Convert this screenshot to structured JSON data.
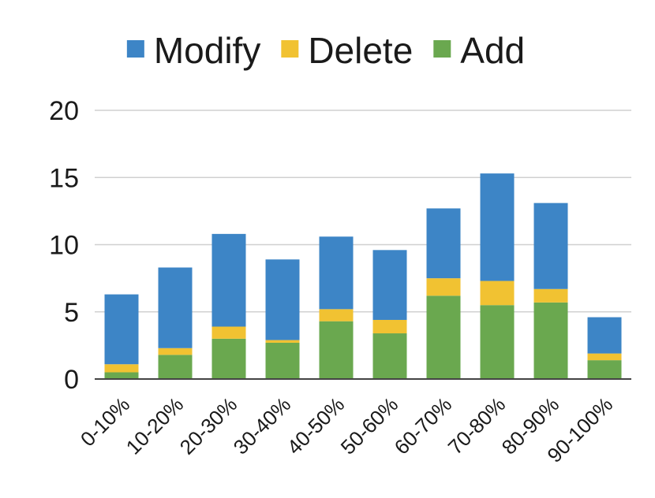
{
  "chart_data": {
    "type": "bar",
    "stacked": true,
    "categories": [
      "0-10%",
      "10-20%",
      "20-30%",
      "30-40%",
      "40-50%",
      "50-60%",
      "60-70%",
      "70-80%",
      "80-90%",
      "90-100%"
    ],
    "series": [
      {
        "name": "Add",
        "color": "#6aa84f",
        "values": [
          0.5,
          1.8,
          3.0,
          2.7,
          4.3,
          3.4,
          6.2,
          5.5,
          5.7,
          1.4
        ]
      },
      {
        "name": "Delete",
        "color": "#f1c232",
        "values": [
          0.6,
          0.5,
          0.9,
          0.2,
          0.9,
          1.0,
          1.3,
          1.8,
          1.0,
          0.5
        ]
      },
      {
        "name": "Modify",
        "color": "#3d85c6",
        "values": [
          5.2,
          6.0,
          6.9,
          6.0,
          5.4,
          5.2,
          5.2,
          8.0,
          6.4,
          2.7
        ]
      }
    ],
    "legend_order": [
      "Modify",
      "Delete",
      "Add"
    ],
    "legend_position": "top",
    "ylim": [
      0,
      20
    ],
    "yticks": [
      0,
      5,
      10,
      15,
      20
    ],
    "grid": true,
    "xlabel": "",
    "ylabel": "",
    "title": ""
  }
}
